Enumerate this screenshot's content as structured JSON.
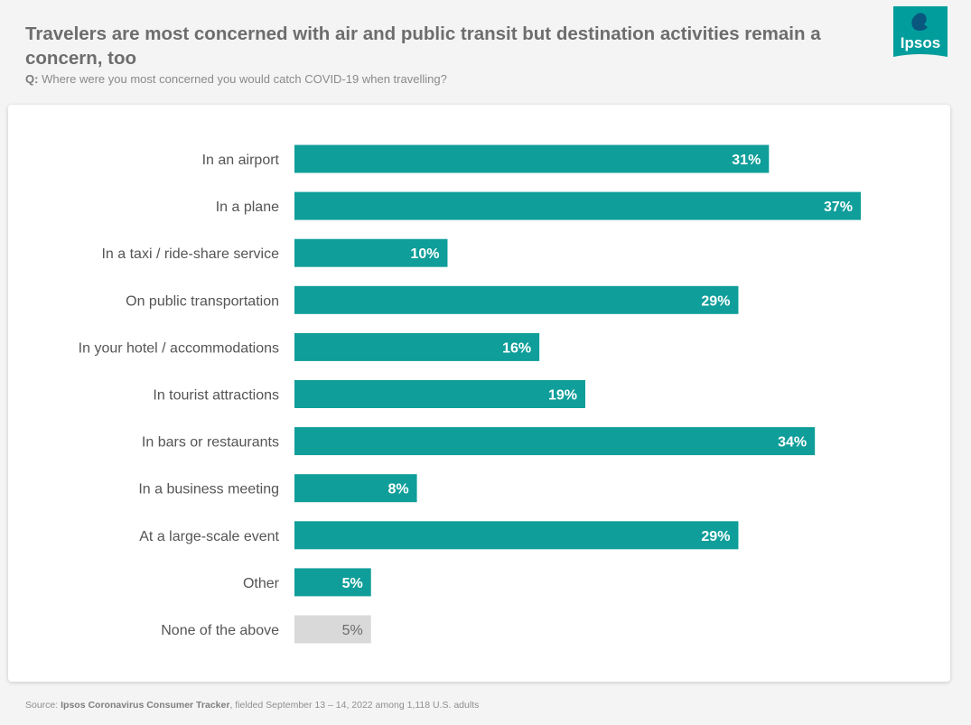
{
  "header": {
    "title": "Travelers are most concerned with air and public transit but destination activities remain a concern, too",
    "question_prefix": "Q:",
    "question": "Where were you most concerned you would catch COVID-19 when travelling?"
  },
  "logo": {
    "text": "Ipsos",
    "icon": "ipsos-logo-icon",
    "color": "#009d9c"
  },
  "footer": {
    "prefix": "Source:",
    "source_name": "Ipsos Coronavirus Consumer Tracker",
    "source_detail": ", fielded September 13 – 14, 2022 among 1,118 U.S. adults"
  },
  "colors": {
    "bar": "#0f9e9a",
    "bar_neutral": "#d9d9d9",
    "label_on_bar": "#ffffff",
    "label_neutral": "#6b6b6b"
  },
  "chart_data": {
    "type": "bar",
    "orientation": "horizontal",
    "title": "",
    "xlabel": "",
    "ylabel": "",
    "xlim": [
      0,
      37
    ],
    "grid": false,
    "legend": "none",
    "categories": [
      "In an airport",
      "In a plane",
      "In a taxi / ride-share service",
      "On public transportation",
      "In your hotel / accommodations",
      "In tourist attractions",
      "In bars or restaurants",
      "In a business meeting",
      "At a large-scale event",
      "Other",
      "None of the above"
    ],
    "values": [
      31,
      37,
      10,
      29,
      16,
      19,
      34,
      8,
      29,
      5,
      5
    ],
    "value_labels": [
      "31%",
      "37%",
      "10%",
      "29%",
      "16%",
      "19%",
      "34%",
      "8%",
      "29%",
      "5%",
      "5%"
    ],
    "neutral_categories": [
      "None of the above"
    ]
  }
}
